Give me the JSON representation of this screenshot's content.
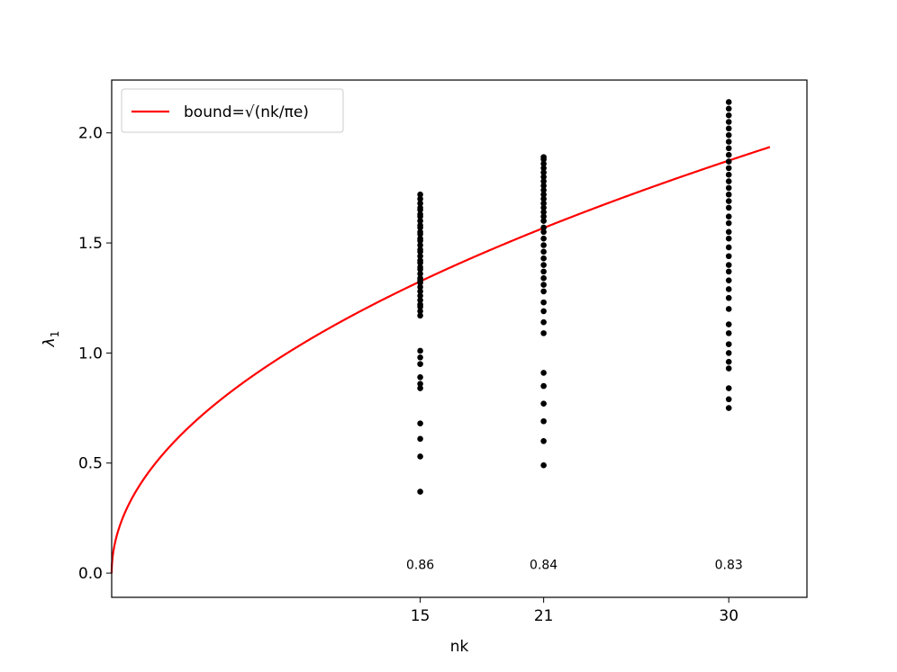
{
  "chart_data": {
    "type": "scatter",
    "title": "",
    "xlabel": "nk",
    "ylabel": "λ1",
    "xlim": [
      0.0,
      33.8
    ],
    "ylim": [
      -0.11,
      2.24
    ],
    "x_ticks": [
      15,
      21,
      30
    ],
    "y_ticks": [
      0.0,
      0.5,
      1.0,
      1.5,
      2.0
    ],
    "y_tick_labels": [
      "0.0",
      "0.5",
      "1.0",
      "1.5",
      "2.0"
    ],
    "grid": false,
    "legend": {
      "placement": "top-left",
      "entries": [
        {
          "label": "bound=√(nk/πe)"
        }
      ]
    },
    "colors": {
      "bound": "#ff0000",
      "points": "#000000"
    },
    "bound_curve": {
      "name": "bound=√(nk/πe)",
      "formula": "sqrt(x/(pi*e))",
      "x_range": [
        0,
        32
      ]
    },
    "series": [
      {
        "x": 15,
        "values": [
          0.37,
          0.53,
          0.61,
          0.68,
          0.84,
          0.86,
          0.89,
          0.95,
          0.98,
          1.01,
          1.17,
          1.19,
          1.21,
          1.22,
          1.24,
          1.26,
          1.28,
          1.3,
          1.32,
          1.33,
          1.34,
          1.36,
          1.38,
          1.39,
          1.41,
          1.42,
          1.44,
          1.46,
          1.47,
          1.49,
          1.51,
          1.52,
          1.54,
          1.55,
          1.57,
          1.58,
          1.6,
          1.62,
          1.63,
          1.65,
          1.66,
          1.68,
          1.7,
          1.72
        ]
      },
      {
        "x": 21,
        "values": [
          0.49,
          0.6,
          0.69,
          0.77,
          0.85,
          0.91,
          1.09,
          1.14,
          1.19,
          1.23,
          1.28,
          1.31,
          1.34,
          1.37,
          1.4,
          1.43,
          1.46,
          1.49,
          1.52,
          1.55,
          1.57,
          1.6,
          1.62,
          1.64,
          1.66,
          1.68,
          1.7,
          1.72,
          1.74,
          1.76,
          1.78,
          1.8,
          1.82,
          1.84,
          1.86,
          1.88,
          1.89
        ]
      },
      {
        "x": 30,
        "values": [
          0.75,
          0.79,
          0.84,
          0.93,
          0.96,
          1.0,
          1.04,
          1.09,
          1.13,
          1.2,
          1.25,
          1.29,
          1.33,
          1.37,
          1.4,
          1.44,
          1.48,
          1.52,
          1.55,
          1.59,
          1.62,
          1.66,
          1.69,
          1.72,
          1.75,
          1.78,
          1.81,
          1.84,
          1.87,
          1.9,
          1.93,
          1.96,
          1.99,
          2.02,
          2.05,
          2.08,
          2.11,
          2.14
        ]
      }
    ],
    "annotations": [
      {
        "x": 15,
        "y": 0.04,
        "text": "0.86"
      },
      {
        "x": 21,
        "y": 0.04,
        "text": "0.84"
      },
      {
        "x": 30,
        "y": 0.04,
        "text": "0.83"
      }
    ]
  }
}
